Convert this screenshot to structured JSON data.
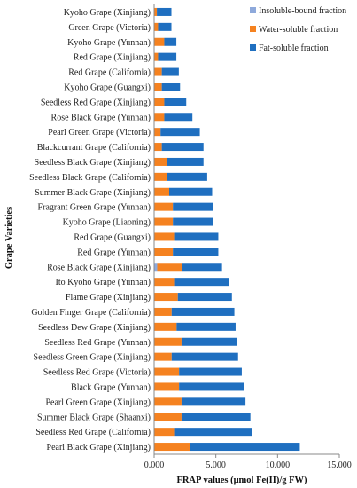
{
  "chart_data": {
    "type": "bar",
    "orientation": "horizontal",
    "stacked": true,
    "xlabel": "FRAP values (μmol Fe(II)/g FW)",
    "ylabel": "Grape Varieties",
    "xlim": [
      0,
      15
    ],
    "xticks": [
      "0.000",
      "5.000",
      "10.000",
      "15.000"
    ],
    "grid": false,
    "legend_position": "top-right",
    "categories": [
      "Kyoho Grape (Xinjiang)",
      "Green Grape (Victoria)",
      "Kyoho Grape (Yunnan)",
      "Red Grape (Xinjiang)",
      "Red Grape (California)",
      "Kyoho Grape (Guangxi)",
      "Seedless Red Grape (Xinjiang)",
      "Rose Black Grape (Yunnan)",
      "Pearl Green Grape (Victoria)",
      "Blackcurrant Grape (California)",
      "Seedless Black Grape (Xinjiang)",
      "Seedless Black Grape (California)",
      "Summer Black Grape (Xinjiang)",
      "Fragrant Green Grape (Yunnan)",
      "Kyoho Grape (Liaoning)",
      "Red Grape (Guangxi)",
      "Red Grape (Yunnan)",
      "Rose Black Grape (Xinjiang)",
      "Ito Kyoho Grape (Yunnan)",
      "Flame Grape (Xinjiang)",
      "Golden Finger Grape (California)",
      "Seedless Dew Grape (Xinjiang)",
      "Seedless Red Grape (Yunnan)",
      "Seedless Green Grape (Xinjiang)",
      "Seedless Red Grape (Victoria)",
      "Black Grape (Yunnan)",
      "Pearl Green Grape (Xinjiang)",
      "Summer Black Grape (Shaanxi)",
      "Seedless Red Grape (California)",
      "Pearl Black Grape (Xinjiang)"
    ],
    "series": [
      {
        "name": "Insoluble-bound fraction",
        "color": "#8ea9db",
        "values": [
          0.02,
          0.02,
          0.02,
          0.02,
          0.02,
          0.02,
          0.02,
          0.02,
          0.02,
          0.02,
          0.02,
          0.02,
          0.02,
          0.02,
          0.02,
          0.02,
          0.02,
          0.25,
          0.02,
          0.02,
          0.02,
          0.02,
          0.02,
          0.02,
          0.02,
          0.02,
          0.02,
          0.02,
          0.02,
          0.02
        ]
      },
      {
        "name": "Water-soluble fraction",
        "color": "#f58220",
        "values": [
          0.2,
          0.3,
          0.8,
          0.3,
          0.6,
          0.6,
          0.8,
          0.8,
          0.5,
          0.6,
          1.0,
          1.0,
          1.2,
          1.5,
          1.5,
          1.6,
          1.5,
          2.0,
          1.6,
          1.9,
          1.4,
          1.8,
          2.2,
          1.4,
          2.0,
          2.0,
          2.2,
          2.2,
          1.6,
          2.9
        ]
      },
      {
        "name": "Fat-soluble fraction",
        "color": "#1f6fc0",
        "values": [
          1.18,
          1.08,
          0.98,
          1.48,
          1.38,
          1.48,
          1.78,
          2.28,
          3.18,
          3.38,
          2.98,
          3.28,
          3.48,
          3.28,
          3.28,
          3.58,
          3.68,
          3.25,
          4.48,
          4.38,
          5.08,
          4.78,
          4.48,
          5.38,
          5.08,
          5.28,
          5.18,
          5.58,
          6.28,
          8.88
        ]
      }
    ]
  }
}
